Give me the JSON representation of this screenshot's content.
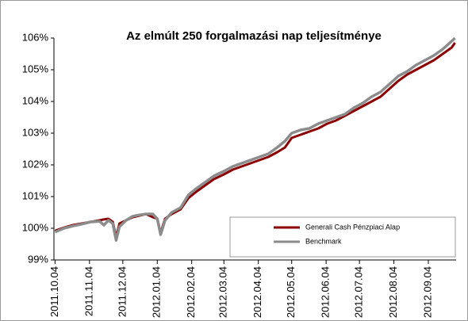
{
  "chart_data": {
    "type": "line",
    "title": "Az elmúlt 250 forgalmazási nap teljesítménye",
    "x": [
      "2011.10.04",
      "2011.10.12",
      "2011.10.20",
      "2011.10.28",
      "2011.11.05",
      "2011.11.13",
      "2011.11.17",
      "2011.11.21",
      "2011.11.25",
      "2011.11.28",
      "2011.12.01",
      "2011.12.07",
      "2011.12.13",
      "2011.12.19",
      "2011.12.25",
      "2011.12.31",
      "2012.01.04",
      "2012.01.07",
      "2012.01.11",
      "2012.01.17",
      "2012.01.25",
      "2012.02.01",
      "2012.02.08",
      "2012.02.16",
      "2012.02.24",
      "2012.03.04",
      "2012.03.12",
      "2012.03.20",
      "2012.03.28",
      "2012.04.05",
      "2012.04.13",
      "2012.04.21",
      "2012.04.28",
      "2012.05.04",
      "2012.05.12",
      "2012.05.20",
      "2012.05.28",
      "2012.06.05",
      "2012.06.13",
      "2012.06.21",
      "2012.06.29",
      "2012.07.07",
      "2012.07.15",
      "2012.07.23",
      "2012.07.31",
      "2012.08.08",
      "2012.08.16",
      "2012.08.24",
      "2012.09.01",
      "2012.09.09",
      "2012.09.17",
      "2012.09.25",
      "2012.09.28"
    ],
    "series": [
      {
        "name": "Generali Cash Pénzpiaci Alap",
        "color": "#8b0000",
        "values": [
          99.92,
          100.02,
          100.1,
          100.15,
          100.2,
          100.25,
          100.28,
          100.3,
          100.2,
          99.72,
          100.15,
          100.25,
          100.35,
          100.4,
          100.45,
          100.35,
          100.3,
          99.85,
          100.3,
          100.45,
          100.6,
          100.95,
          101.15,
          101.35,
          101.55,
          101.7,
          101.85,
          101.95,
          102.05,
          102.15,
          102.25,
          102.4,
          102.55,
          102.85,
          102.95,
          103.05,
          103.15,
          103.3,
          103.4,
          103.55,
          103.7,
          103.85,
          104.0,
          104.15,
          104.4,
          104.65,
          104.85,
          105.0,
          105.15,
          105.3,
          105.5,
          105.7,
          105.85
        ]
      },
      {
        "name": "Benchmark",
        "color": "#8c8c8c",
        "values": [
          99.88,
          100.0,
          100.07,
          100.13,
          100.2,
          100.22,
          100.1,
          100.25,
          100.15,
          99.62,
          100.05,
          100.25,
          100.38,
          100.42,
          100.45,
          100.45,
          100.3,
          99.8,
          100.25,
          100.5,
          100.65,
          101.05,
          101.25,
          101.45,
          101.65,
          101.8,
          101.95,
          102.05,
          102.15,
          102.25,
          102.35,
          102.55,
          102.75,
          103.0,
          103.1,
          103.15,
          103.3,
          103.4,
          103.5,
          103.6,
          103.8,
          103.95,
          104.15,
          104.3,
          104.55,
          104.8,
          104.95,
          105.15,
          105.3,
          105.45,
          105.65,
          105.9,
          106.0
        ]
      }
    ],
    "xlim": [
      "2011.10.03",
      "2012.09.29"
    ],
    "xticks": [
      "2011.10.04",
      "2011.11.04",
      "2011.12.04",
      "2012.01.04",
      "2012.02.04",
      "2012.03.04",
      "2012.04.04",
      "2012.05.04",
      "2012.06.04",
      "2012.07.04",
      "2012.08.04",
      "2012.09.04"
    ],
    "ylim": [
      99,
      106
    ],
    "yticks": [
      {
        "value": 99,
        "label": "99%"
      },
      {
        "value": 100,
        "label": "100%"
      },
      {
        "value": 101,
        "label": "101%"
      },
      {
        "value": 102,
        "label": "102%"
      },
      {
        "value": 103,
        "label": "103%"
      },
      {
        "value": 104,
        "label": "104%"
      },
      {
        "value": 105,
        "label": "105%"
      },
      {
        "value": 106,
        "label": "106%"
      }
    ],
    "legend": "lower right",
    "grid": false
  }
}
